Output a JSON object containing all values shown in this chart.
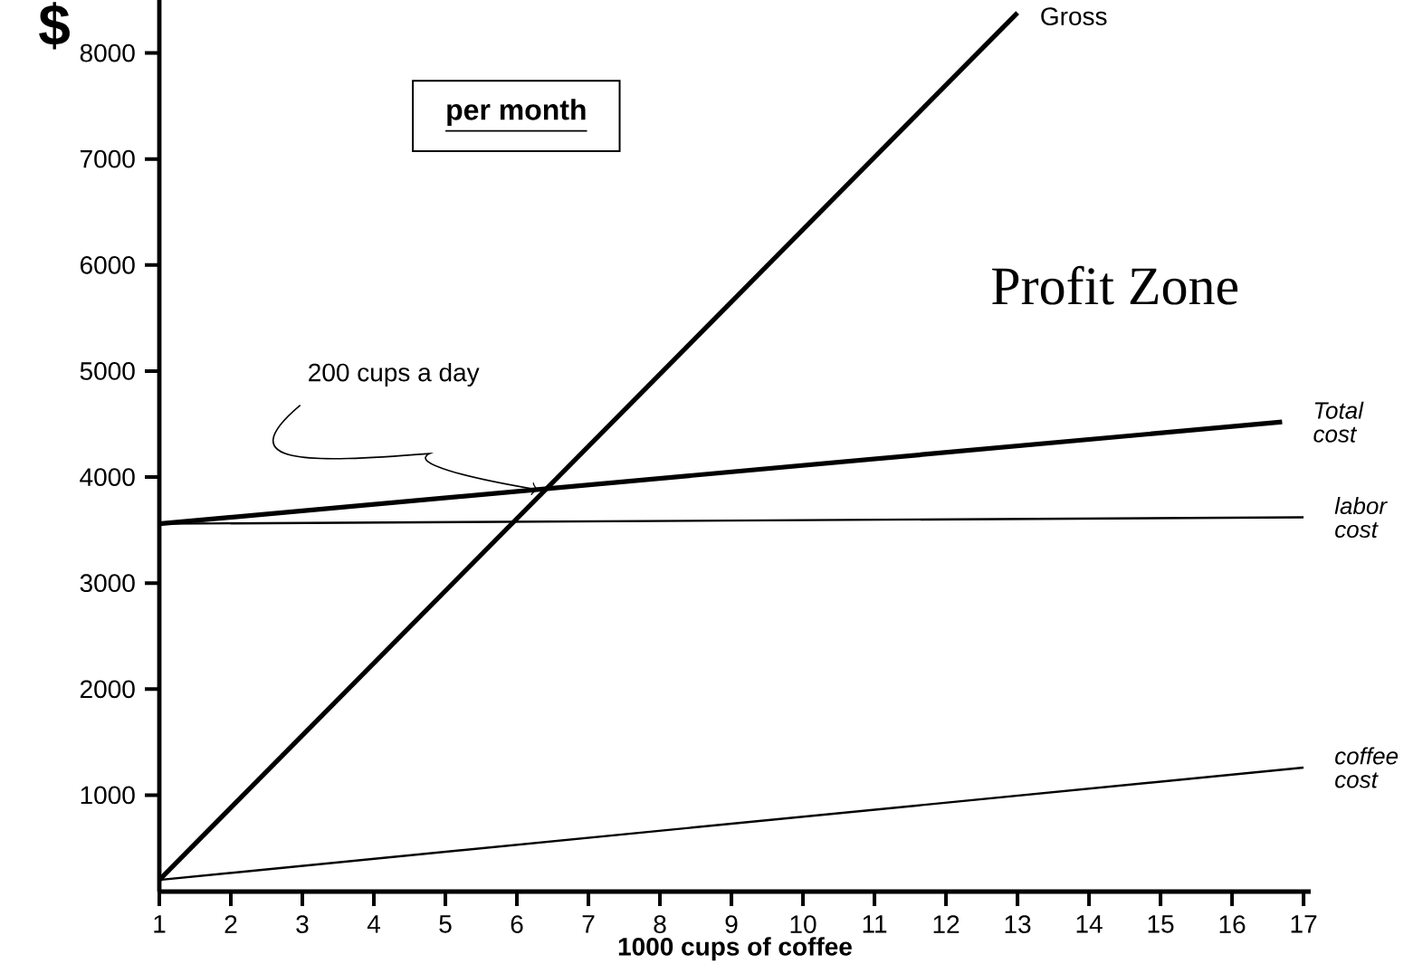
{
  "chart_data": {
    "type": "line",
    "xlabel": "1000 cups of coffee",
    "ylabel": "$",
    "xlim": [
      1,
      17.1
    ],
    "ylim": [
      90,
      8500
    ],
    "xticks": [
      1,
      2,
      3,
      4,
      5,
      6,
      7,
      8,
      9,
      10,
      11,
      12,
      13,
      14,
      15,
      16,
      17
    ],
    "yticks": [
      1000,
      2000,
      3000,
      4000,
      5000,
      6000,
      7000,
      8000
    ],
    "grid": false,
    "legend": false,
    "marker": "none",
    "line_style": "solid",
    "series": [
      {
        "name": "Gross",
        "color": "#000000",
        "x": [
          1,
          13
        ],
        "values": [
          200,
          8380
        ]
      },
      {
        "name": "Total cost",
        "color": "#000000",
        "x": [
          1,
          16.7
        ],
        "values": [
          3560,
          4520
        ]
      },
      {
        "name": "labor cost",
        "color": "#000000",
        "x": [
          1,
          17
        ],
        "values": [
          3560,
          3620
        ]
      },
      {
        "name": "coffee cost",
        "color": "#000000",
        "x": [
          1,
          17
        ],
        "values": [
          200,
          1260
        ]
      }
    ],
    "annotations": [
      "per month",
      "Profit Zone",
      {
        "text": "200 cups a day",
        "x": 6.3,
        "y": 3880
      }
    ]
  }
}
